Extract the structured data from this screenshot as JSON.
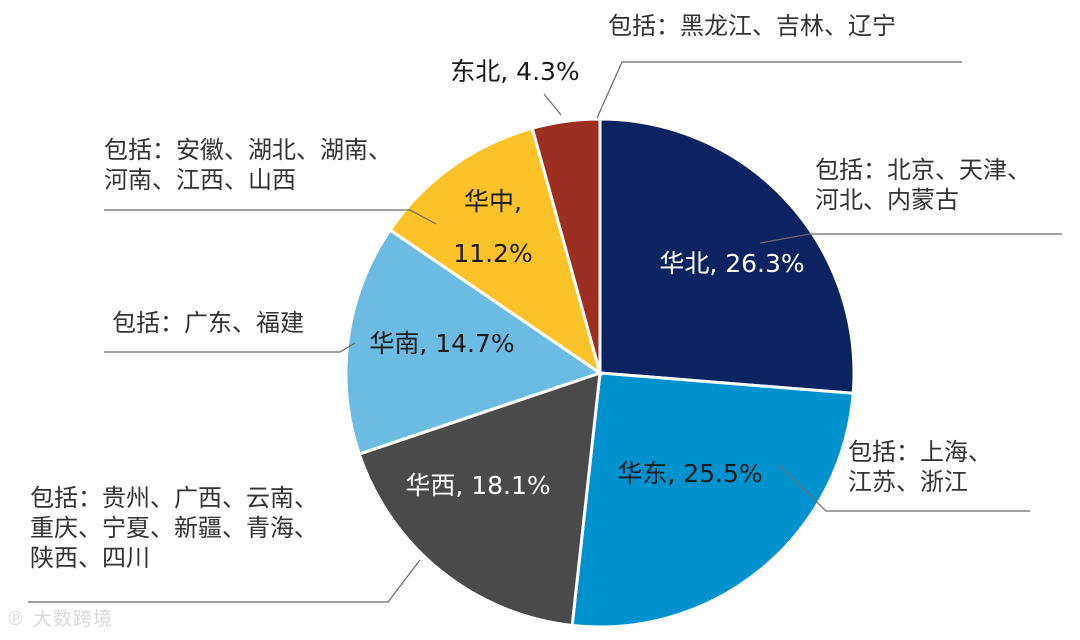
{
  "chart_data": {
    "type": "pie",
    "categories": [
      "华北",
      "华东",
      "华西",
      "华南",
      "华中",
      "东北"
    ],
    "values": [
      26.3,
      25.5,
      18.1,
      14.7,
      11.2,
      4.3
    ],
    "unit": "%",
    "slice_labels": [
      [
        "华北, 26.3%"
      ],
      [
        "华东, 25.5%"
      ],
      [
        "华西, 18.1%"
      ],
      [
        "华南, 14.7%"
      ],
      [
        "华中,",
        "11.2%"
      ],
      [
        "东北, 4.3%"
      ]
    ],
    "notes": [
      [
        "包括：北京、天津、",
        "河北、内蒙古"
      ],
      [
        "包括：上海、",
        "江苏、浙江"
      ],
      [
        "包括：贵州、广西、云南、",
        "重庆、宁夏、新疆、青海、",
        "陕西、四川"
      ],
      [
        "包括：广东、福建"
      ],
      [
        "包括：安徽、湖北、湖南、",
        "河南、江西、山西"
      ],
      [
        "包括：黑龙江、吉林、辽宁"
      ]
    ],
    "colors": [
      "#0b2461",
      "#0092cf",
      "#4a4a4a",
      "#6cbbe3",
      "#fbc327",
      "#9c2e22"
    ],
    "label_colors": [
      "#ffffff",
      "#1a1a1a",
      "#ffffff",
      "#1a1a1a",
      "#1a1a1a",
      "#1a1a1a"
    ]
  },
  "watermark": "大数跨境"
}
